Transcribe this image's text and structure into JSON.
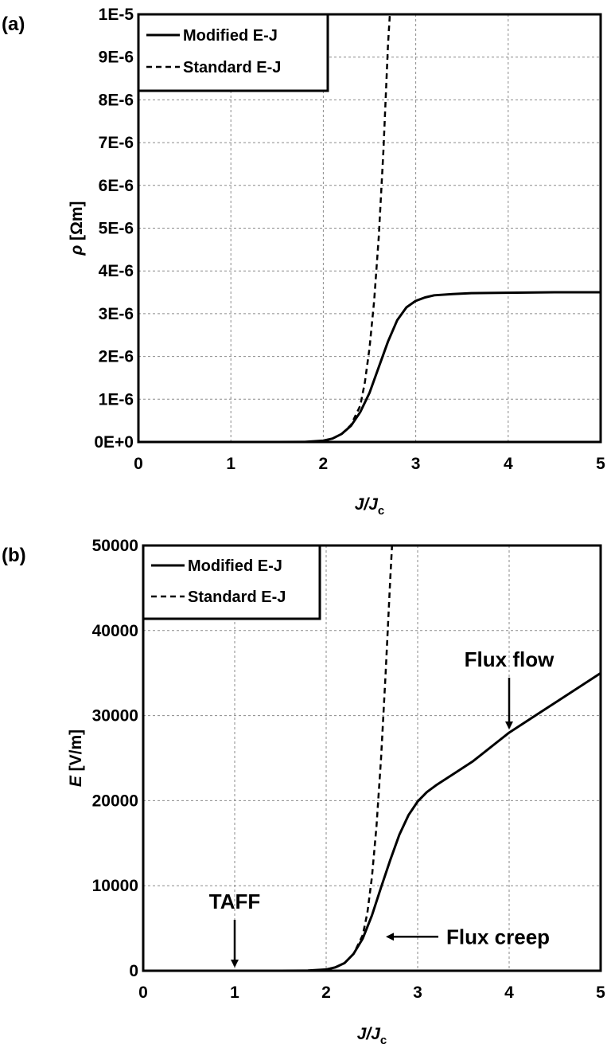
{
  "chart_data": [
    {
      "type": "line",
      "panel_label": "(a)",
      "xlabel_main": "J",
      "xlabel_sub": "c",
      "xlabel_mid": "/J",
      "ylabel_symbol": "ρ",
      "ylabel_unit": " [Ωm]",
      "xlim": [
        0,
        5
      ],
      "ylim": [
        0,
        1e-05
      ],
      "x_ticks": [
        "0",
        "1",
        "2",
        "3",
        "4",
        "5"
      ],
      "y_ticks": [
        "0E+0",
        "1E-6",
        "2E-6",
        "3E-6",
        "4E-6",
        "5E-6",
        "6E-6",
        "7E-6",
        "8E-6",
        "9E-6",
        "1E-5"
      ],
      "grid": true,
      "legend_position": "top-left",
      "series": [
        {
          "name": "Modified E-J",
          "style": "solid",
          "x": [
            0,
            1,
            1.5,
            1.8,
            2.0,
            2.1,
            2.2,
            2.3,
            2.4,
            2.5,
            2.6,
            2.7,
            2.8,
            2.9,
            3.0,
            3.1,
            3.2,
            3.4,
            3.6,
            4.0,
            4.5,
            5.0
          ],
          "y": [
            0,
            0,
            0,
            2e-09,
            3e-08,
            8e-08,
            1.9e-07,
            3.8e-07,
            7e-07,
            1.15e-06,
            1.75e-06,
            2.35e-06,
            2.85e-06,
            3.15e-06,
            3.3e-06,
            3.38e-06,
            3.43e-06,
            3.46e-06,
            3.48e-06,
            3.49e-06,
            3.5e-06,
            3.5e-06
          ]
        },
        {
          "name": "Standard E-J",
          "style": "dashed",
          "x": [
            2.0,
            2.1,
            2.2,
            2.3,
            2.4,
            2.45,
            2.5,
            2.55,
            2.6,
            2.65,
            2.7,
            2.72
          ],
          "y": [
            3e-08,
            8e-08,
            1.9e-07,
            4e-07,
            8.5e-07,
            1.4e-06,
            2.2e-06,
            3.3e-06,
            4.8e-06,
            6.8e-06,
            9.3e-06,
            1e-05
          ]
        }
      ]
    },
    {
      "type": "line",
      "panel_label": "(b)",
      "xlabel_main": "J",
      "xlabel_sub": "c",
      "xlabel_mid": "/J",
      "ylabel_symbol": "E",
      "ylabel_unit": " [V/m]",
      "xlim": [
        0,
        5
      ],
      "ylim": [
        0,
        50000
      ],
      "x_ticks": [
        "0",
        "1",
        "2",
        "3",
        "4",
        "5"
      ],
      "y_ticks": [
        "0",
        "10000",
        "20000",
        "30000",
        "40000",
        "50000"
      ],
      "grid": true,
      "legend_position": "top-left",
      "series": [
        {
          "name": "Modified E-J",
          "style": "solid",
          "x": [
            0,
            1,
            1.5,
            1.8,
            2.0,
            2.1,
            2.2,
            2.3,
            2.4,
            2.5,
            2.6,
            2.7,
            2.8,
            2.9,
            3.0,
            3.1,
            3.2,
            3.4,
            3.6,
            4.0,
            4.5,
            5.0
          ],
          "y": [
            0,
            0,
            0,
            20,
            150,
            400,
            900,
            2000,
            3800,
            6500,
            9800,
            13000,
            16000,
            18300,
            19900,
            21000,
            21800,
            23200,
            24600,
            28000,
            31500,
            35000
          ]
        },
        {
          "name": "Standard E-J",
          "style": "dashed",
          "x": [
            2.0,
            2.1,
            2.2,
            2.3,
            2.4,
            2.45,
            2.5,
            2.55,
            2.6,
            2.65,
            2.7,
            2.72
          ],
          "y": [
            150,
            400,
            900,
            2000,
            4200,
            6800,
            11000,
            17000,
            25000,
            35000,
            46000,
            50000
          ]
        }
      ],
      "annotations": [
        {
          "text": "TAFF",
          "x": 1.0,
          "y": 0,
          "arrow": "down"
        },
        {
          "text": "Flux creep",
          "x": 2.6,
          "y": 4000,
          "arrow": "left"
        },
        {
          "text": "Flux flow",
          "x": 4.0,
          "y": 28000,
          "arrow": "down"
        }
      ]
    }
  ]
}
